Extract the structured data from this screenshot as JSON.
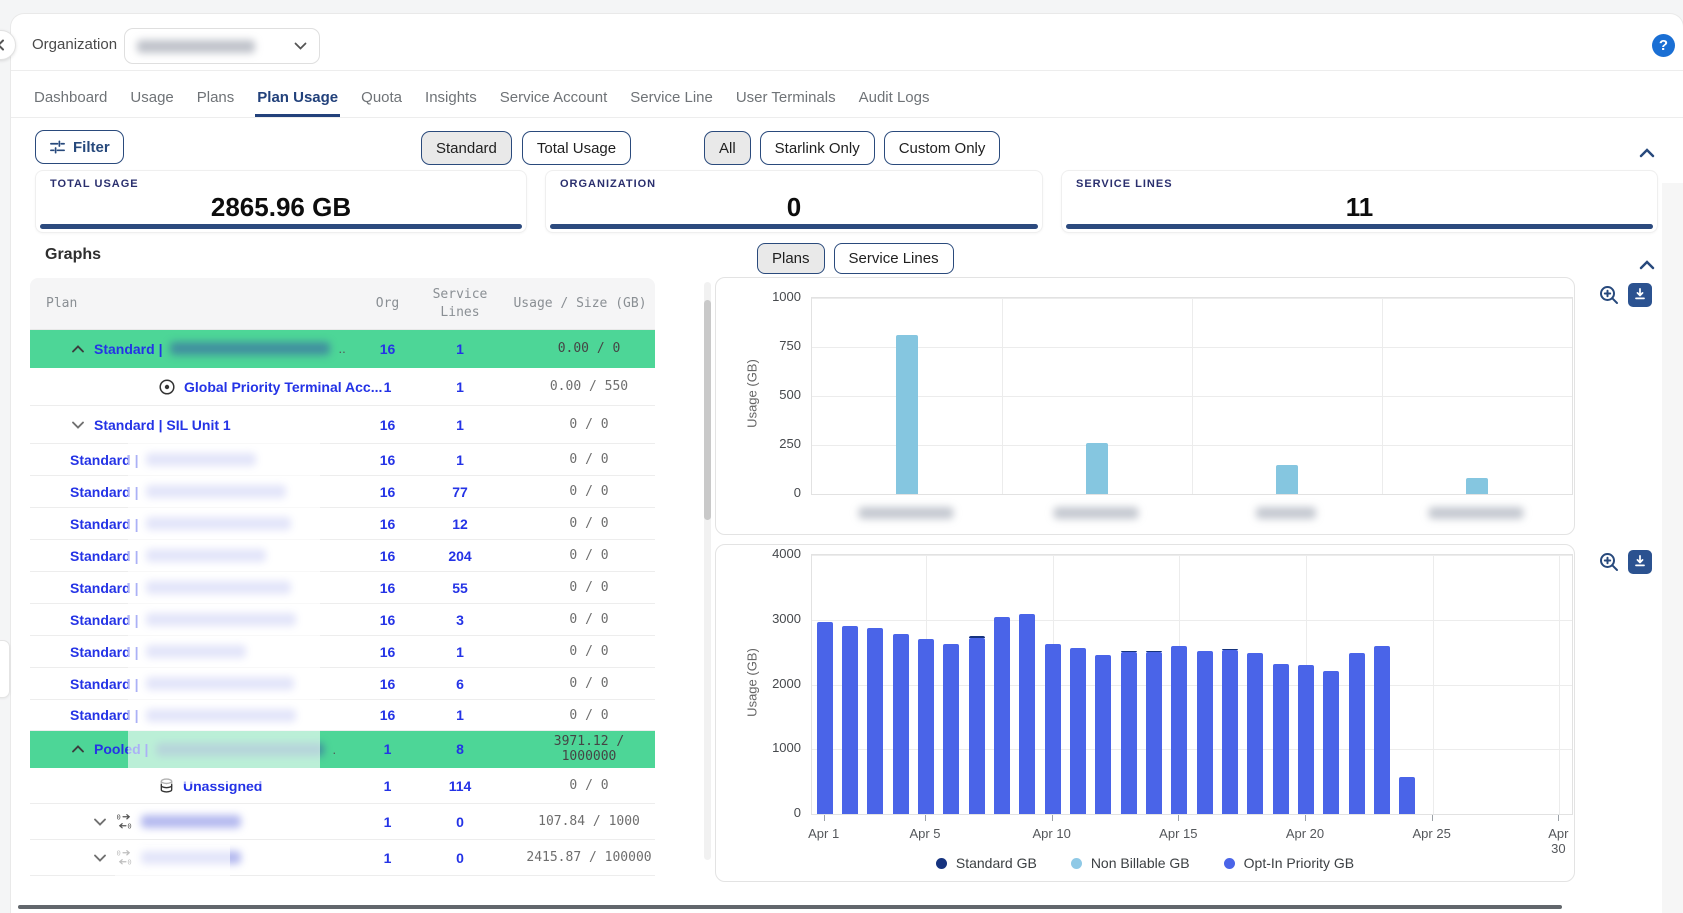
{
  "colors": {
    "accent_navy": "#2c4a7e",
    "active_tab_navy": "#22417b",
    "link_blue": "#2433e6",
    "highlight_green": "#4dd697",
    "bar_light_blue": "#85c6e0",
    "bar_royal_blue": "#4a64e8",
    "legend_navy": "#16337f",
    "legend_light_blue": "#8fc9e6",
    "help_blue": "#1a6fd4"
  },
  "header": {
    "org_label": "Organization",
    "org_value_redacted": true,
    "help_icon": "?"
  },
  "tabs": {
    "items": [
      {
        "label": "Dashboard",
        "active": false
      },
      {
        "label": "Usage",
        "active": false
      },
      {
        "label": "Plans",
        "active": false
      },
      {
        "label": "Plan Usage",
        "active": true
      },
      {
        "label": "Quota",
        "active": false
      },
      {
        "label": "Insights",
        "active": false
      },
      {
        "label": "Service Account",
        "active": false
      },
      {
        "label": "Service Line",
        "active": false
      },
      {
        "label": "User Terminals",
        "active": false
      },
      {
        "label": "Audit Logs",
        "active": false
      }
    ]
  },
  "filter_bar": {
    "filter_label": "Filter",
    "usage_toggle": {
      "options": [
        "Standard",
        "Total Usage"
      ],
      "selected": "Standard"
    },
    "scope_toggle": {
      "options": [
        "All",
        "Starlink Only",
        "Custom Only"
      ],
      "selected": "All"
    }
  },
  "stats": [
    {
      "label": "TOTAL USAGE",
      "value": "2865.96 GB"
    },
    {
      "label": "ORGANIZATION",
      "value": "0"
    },
    {
      "label": "SERVICE LINES",
      "value": "11"
    }
  ],
  "graphs_section": {
    "title": "Graphs",
    "chart_toggle": {
      "options": [
        "Plans",
        "Service Lines"
      ],
      "selected": "Plans"
    }
  },
  "table": {
    "columns": [
      "Plan",
      "Org",
      "Service Lines",
      "Usage / Size (GB)"
    ],
    "rows": [
      {
        "chevron": "up",
        "icon": null,
        "indent": 0,
        "name": "Standard |",
        "redacted": true,
        "redacted_width": 160,
        "suffix": "..",
        "org": "16",
        "service_lines": "1",
        "usage": "0.00 / 0",
        "highlighted": true
      },
      {
        "chevron": null,
        "icon": "target",
        "indent": 2,
        "name": "Global Priority Terminal Acc...",
        "redacted": false,
        "redacted_width": 0,
        "suffix": "",
        "org": "1",
        "service_lines": "1",
        "usage": "0.00 / 550",
        "highlighted": false
      },
      {
        "chevron": "down",
        "icon": null,
        "indent": 0,
        "name": "Standard | SIL Unit 1",
        "redacted": false,
        "redacted_width": 0,
        "suffix": "",
        "org": "16",
        "service_lines": "1",
        "usage": "0 / 0",
        "highlighted": false
      },
      {
        "chevron": null,
        "icon": null,
        "indent": 0,
        "name": "Standard |",
        "redacted": true,
        "redacted_width": 110,
        "suffix": "",
        "org": "16",
        "service_lines": "1",
        "usage": "0 / 0",
        "highlighted": false
      },
      {
        "chevron": null,
        "icon": null,
        "indent": 0,
        "name": "Standard |",
        "redacted": true,
        "redacted_width": 140,
        "suffix": "",
        "org": "16",
        "service_lines": "77",
        "usage": "0 / 0",
        "highlighted": false
      },
      {
        "chevron": null,
        "icon": null,
        "indent": 0,
        "name": "Standard |",
        "redacted": true,
        "redacted_width": 145,
        "suffix": "",
        "org": "16",
        "service_lines": "12",
        "usage": "0 / 0",
        "highlighted": false
      },
      {
        "chevron": null,
        "icon": null,
        "indent": 0,
        "name": "Standard |",
        "redacted": true,
        "redacted_width": 120,
        "suffix": "",
        "org": "16",
        "service_lines": "204",
        "usage": "0 / 0",
        "highlighted": false
      },
      {
        "chevron": null,
        "icon": null,
        "indent": 0,
        "name": "Standard |",
        "redacted": true,
        "redacted_width": 145,
        "suffix": "",
        "org": "16",
        "service_lines": "55",
        "usage": "0 / 0",
        "highlighted": false
      },
      {
        "chevron": null,
        "icon": null,
        "indent": 0,
        "name": "Standard |",
        "redacted": true,
        "redacted_width": 150,
        "suffix": "",
        "org": "16",
        "service_lines": "3",
        "usage": "0 / 0",
        "highlighted": false
      },
      {
        "chevron": null,
        "icon": null,
        "indent": 0,
        "name": "Standard |",
        "redacted": true,
        "redacted_width": 100,
        "suffix": "",
        "org": "16",
        "service_lines": "1",
        "usage": "0 / 0",
        "highlighted": false
      },
      {
        "chevron": null,
        "icon": null,
        "indent": 0,
        "name": "Standard |",
        "redacted": true,
        "redacted_width": 148,
        "suffix": "",
        "org": "16",
        "service_lines": "6",
        "usage": "0 / 0",
        "highlighted": false
      },
      {
        "chevron": null,
        "icon": null,
        "indent": 0,
        "name": "Standard |",
        "redacted": true,
        "redacted_width": 150,
        "suffix": "",
        "org": "16",
        "service_lines": "1",
        "usage": "0 / 0",
        "highlighted": false
      },
      {
        "chevron": "up",
        "icon": null,
        "indent": 0,
        "name": "Pooled |",
        "redacted": true,
        "redacted_width": 168,
        "suffix": ".",
        "org": "1",
        "service_lines": "8",
        "usage": "3971.12 / 1000000",
        "highlighted": true
      },
      {
        "chevron": null,
        "icon": "database",
        "indent": 2,
        "name": "Unassigned",
        "redacted": false,
        "redacted_width": 0,
        "suffix": "",
        "org": "1",
        "service_lines": "114",
        "usage": "0 / 0",
        "highlighted": false
      },
      {
        "chevron": "down",
        "icon": "pool",
        "indent": 1,
        "name": "",
        "redacted": true,
        "redacted_width": 100,
        "suffix": "",
        "org": "1",
        "service_lines": "0",
        "usage": "107.84 / 1000",
        "highlighted": false
      },
      {
        "chevron": "down",
        "icon": "pool",
        "indent": 1,
        "name": "",
        "redacted": true,
        "redacted_width": 100,
        "suffix": "",
        "org": "1",
        "service_lines": "0",
        "usage": "2415.87 / 100000",
        "highlighted": false
      }
    ]
  },
  "chart_data": [
    {
      "type": "bar",
      "ylabel": "Usage (GB)",
      "ylim": [
        0,
        1000
      ],
      "yticks": [
        0,
        250,
        500,
        750,
        1000
      ],
      "categories": [
        "[redacted]",
        "[redacted]",
        "[redacted]",
        "[redacted]"
      ],
      "categories_redacted": true,
      "label_redact_widths": [
        95,
        85,
        60,
        95
      ],
      "values": [
        810,
        262,
        148,
        84
      ],
      "bar_color": "#85c6e0",
      "grid": true,
      "legend_position": "none"
    },
    {
      "type": "bar",
      "stacked": true,
      "ylabel": "Usage (GB)",
      "ylim": [
        0,
        4000
      ],
      "yticks": [
        0,
        1000,
        2000,
        3000,
        4000
      ],
      "x_days": 30,
      "xtick_labels": [
        "Apr 1",
        "Apr 5",
        "Apr 10",
        "Apr 15",
        "Apr 20",
        "Apr 25",
        "Apr 30"
      ],
      "xtick_days": [
        1,
        5,
        10,
        15,
        20,
        25,
        30
      ],
      "series": [
        {
          "name": "Opt-In Priority GB",
          "color": "#4a64e8",
          "values": [
            2960,
            2900,
            2870,
            2780,
            2700,
            2620,
            2720,
            3040,
            3090,
            2630,
            2560,
            2460,
            2500,
            2500,
            2600,
            2520,
            2530,
            2480,
            2320,
            2300,
            2210,
            2480,
            2600,
            570,
            0,
            0,
            0,
            0,
            0,
            0
          ]
        },
        {
          "name": "Standard GB",
          "color": "#16337f",
          "values": [
            0,
            0,
            0,
            0,
            0,
            0,
            30,
            0,
            0,
            0,
            0,
            0,
            25,
            25,
            0,
            0,
            25,
            0,
            0,
            0,
            0,
            0,
            0,
            0,
            0,
            0,
            0,
            0,
            0,
            0
          ]
        },
        {
          "name": "Non Billable GB",
          "color": "#8fc9e6",
          "values": [
            0,
            0,
            0,
            0,
            0,
            0,
            0,
            0,
            0,
            0,
            0,
            0,
            0,
            0,
            0,
            0,
            0,
            0,
            0,
            0,
            0,
            0,
            0,
            0,
            0,
            0,
            0,
            0,
            0,
            0
          ]
        }
      ],
      "legend": [
        {
          "label": "Standard GB",
          "color": "#16337f"
        },
        {
          "label": "Non Billable GB",
          "color": "#8fc9e6"
        },
        {
          "label": "Opt-In Priority GB",
          "color": "#4a64e8"
        }
      ],
      "grid": true,
      "legend_position": "bottom"
    }
  ]
}
